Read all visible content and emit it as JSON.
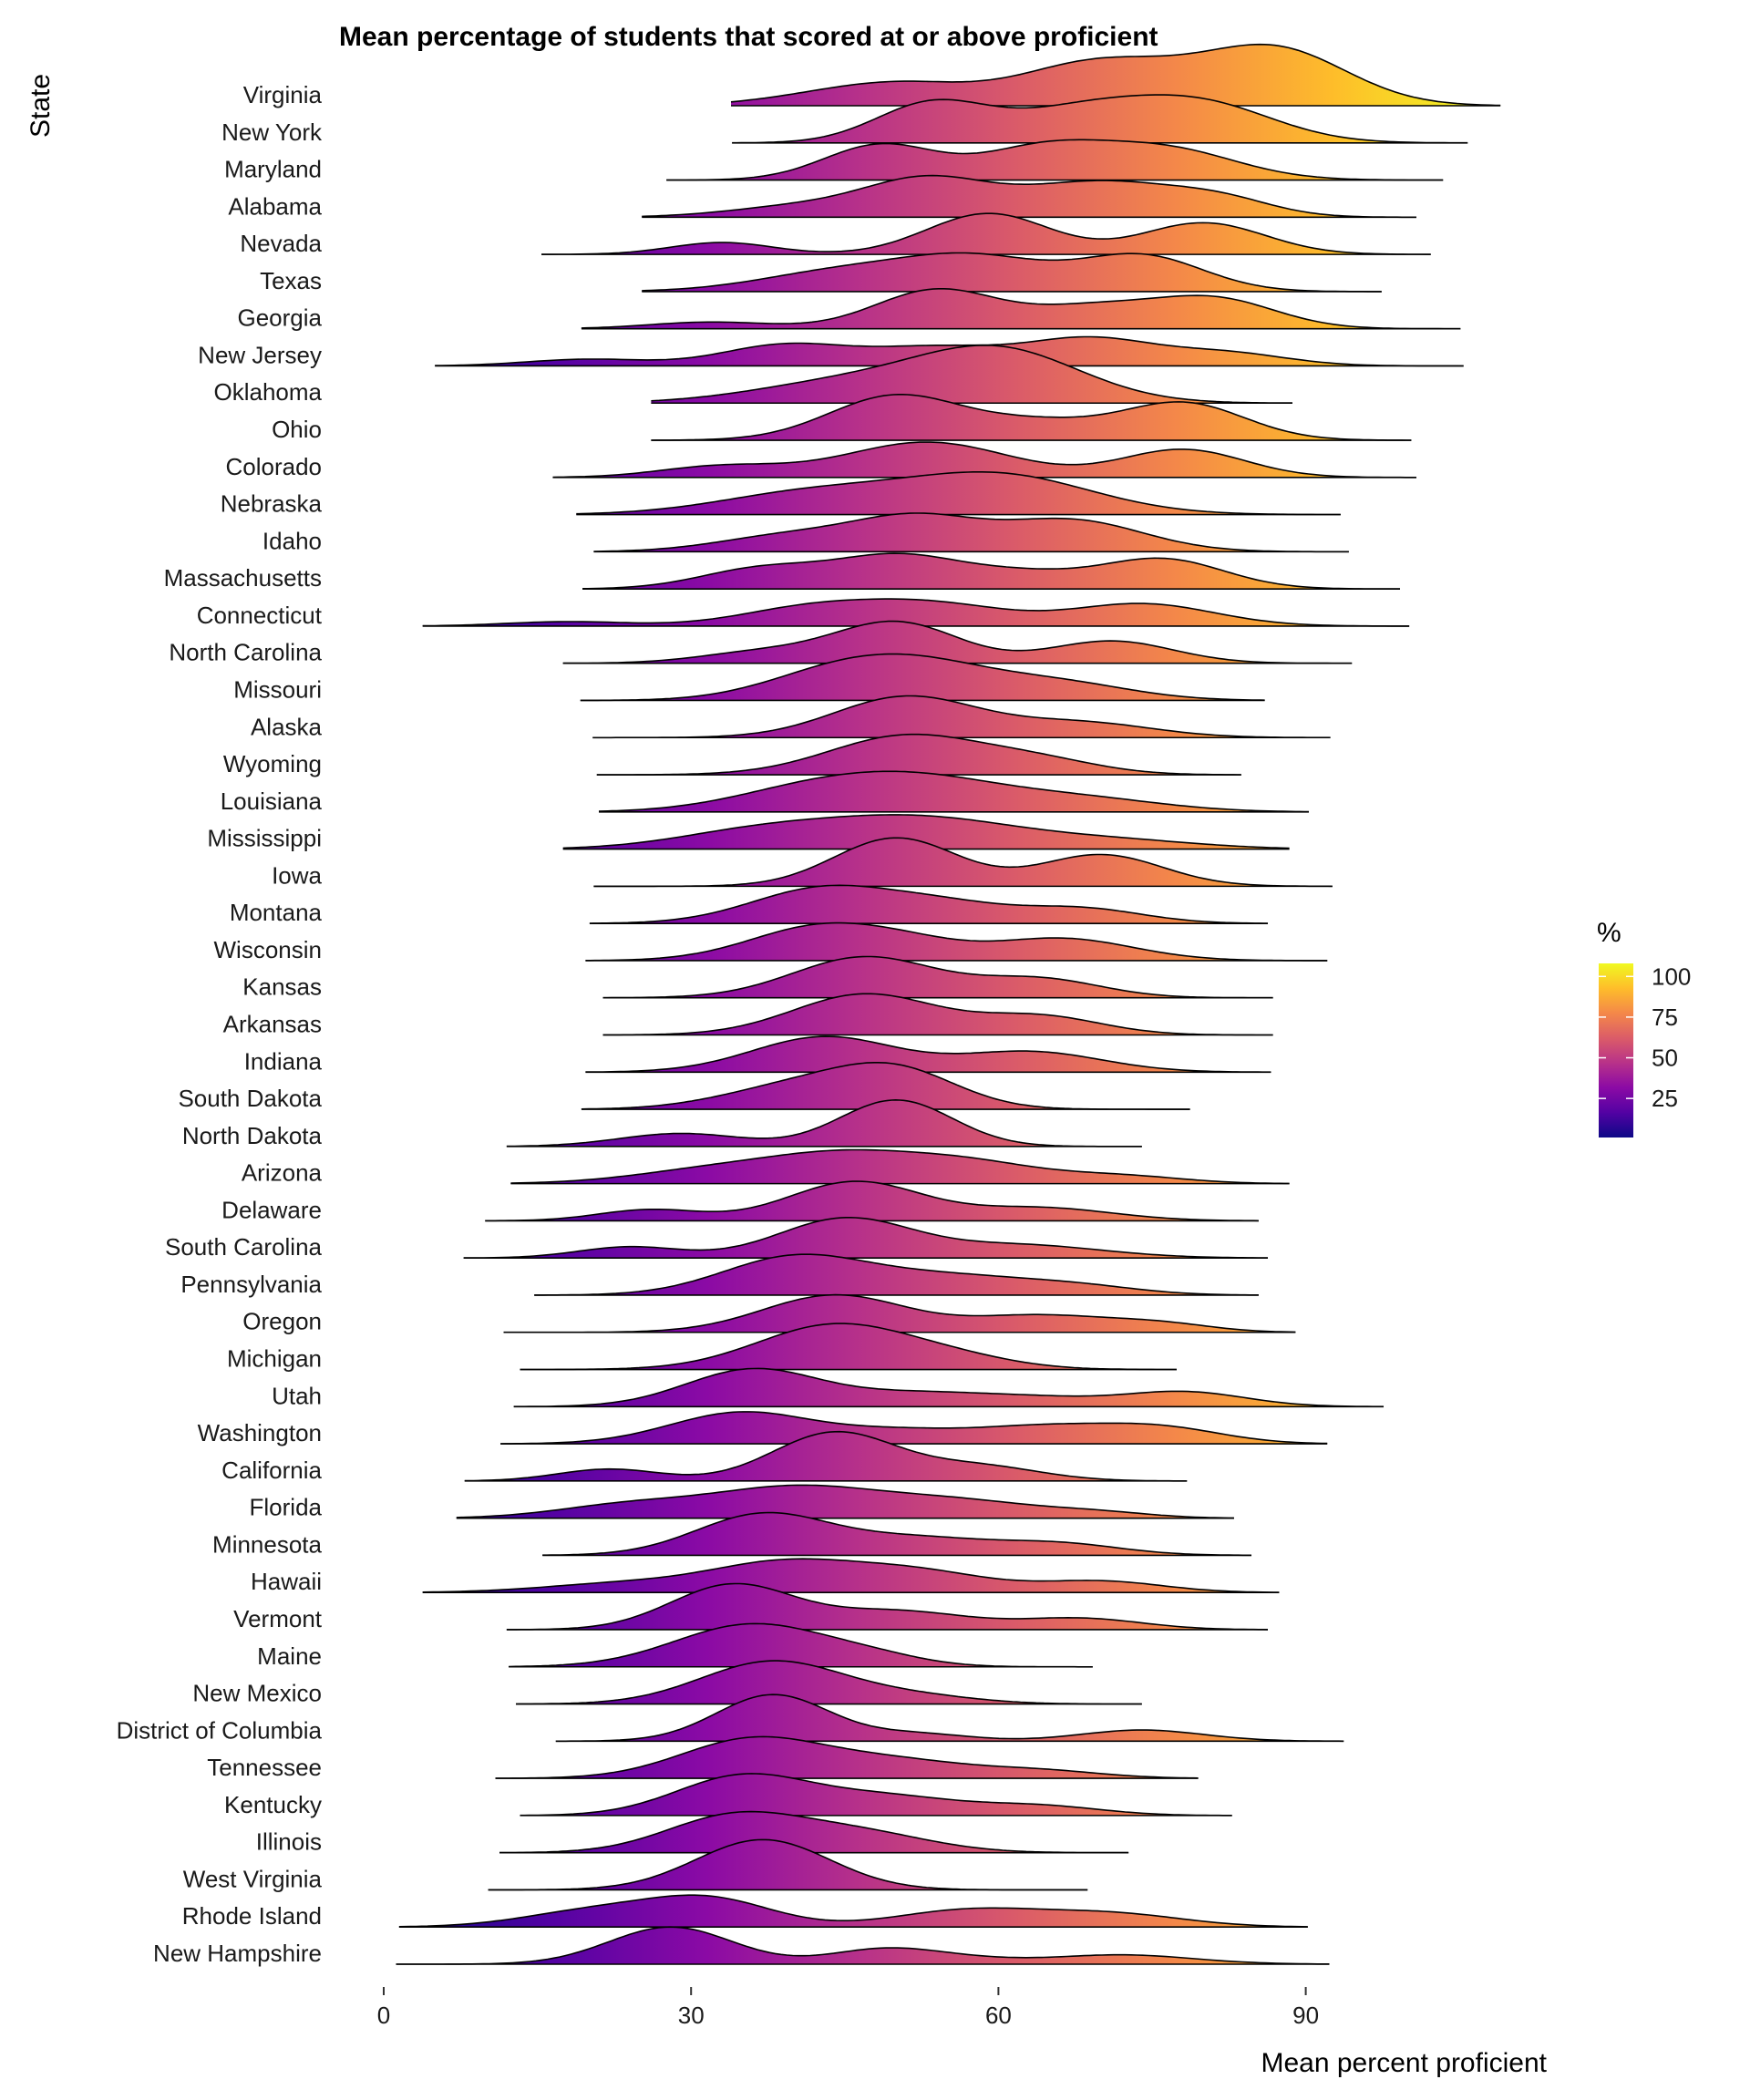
{
  "chart_data": {
    "type": "ridgeline",
    "title": "Mean percentage of students that scored at or above proficient",
    "xlabel": "Mean percent proficient",
    "ylabel": "State",
    "xlim": [
      0,
      110
    ],
    "x_ticks": [
      0,
      30,
      60,
      90
    ],
    "x_tick_labels": [
      "0",
      "30",
      "60",
      "90"
    ],
    "grid": false,
    "fill": "gradient by x value (plasma)",
    "legend": {
      "title": "%",
      "position": "right",
      "range": [
        1,
        108
      ],
      "ticks": [
        100,
        75,
        50,
        25
      ],
      "tick_labels": [
        "100",
        "75",
        "50",
        "25"
      ],
      "colors": [
        "#0d0887",
        "#5302a3",
        "#8b0aa5",
        "#b83289",
        "#db5c68",
        "#f48849",
        "#febd2a",
        "#f0f921"
      ]
    },
    "series": [
      {
        "state": "Virginia",
        "range": [
          33.9,
          109.0
        ],
        "peaks": [
          [
            45,
            7,
            0.35
          ],
          [
            52,
            6,
            0.35
          ],
          [
            70,
            8,
            1.2
          ],
          [
            87,
            7,
            1.5
          ]
        ]
      },
      {
        "state": "New York",
        "range": [
          34.0,
          105.8
        ],
        "peaks": [
          [
            53.5,
            5.5,
            1.05
          ],
          [
            68,
            7,
            0.85
          ],
          [
            80,
            7,
            1.0
          ]
        ]
      },
      {
        "state": "Maryland",
        "range": [
          27.6,
          103.4
        ],
        "peaks": [
          [
            48.5,
            5.5,
            0.95
          ],
          [
            64,
            6,
            0.8
          ],
          [
            76,
            7,
            0.85
          ]
        ]
      },
      {
        "state": "Alabama",
        "range": [
          25.2,
          100.8
        ],
        "peaks": [
          [
            41,
            7,
            0.3
          ],
          [
            53,
            6,
            0.95
          ],
          [
            70,
            8,
            0.95
          ],
          [
            82,
            5,
            0.35
          ]
        ]
      },
      {
        "state": "Nevada",
        "range": [
          15.4,
          102.2
        ],
        "peaks": [
          [
            33,
            5,
            0.32
          ],
          [
            59,
            6,
            1.1
          ],
          [
            80,
            6,
            0.85
          ]
        ]
      },
      {
        "state": "Texas",
        "range": [
          25.2,
          97.4
        ],
        "peaks": [
          [
            45,
            8,
            0.55
          ],
          [
            58,
            7,
            0.85
          ],
          [
            74,
            6,
            0.95
          ]
        ]
      },
      {
        "state": "Georgia",
        "range": [
          19.3,
          105.1
        ],
        "peaks": [
          [
            32,
            6,
            0.18
          ],
          [
            54,
            6,
            1.05
          ],
          [
            69,
            6,
            0.55
          ],
          [
            81,
            6,
            0.8
          ]
        ]
      },
      {
        "state": "New Jersey",
        "range": [
          5.0,
          105.4
        ],
        "peaks": [
          [
            20,
            6,
            0.18
          ],
          [
            39,
            6,
            0.55
          ],
          [
            54,
            7,
            0.5
          ],
          [
            69,
            6,
            0.7
          ],
          [
            82,
            6,
            0.35
          ]
        ]
      },
      {
        "state": "Oklahoma",
        "range": [
          26.1,
          88.7
        ],
        "peaks": [
          [
            45,
            9,
            0.55
          ],
          [
            60,
            8,
            1.4
          ]
        ]
      },
      {
        "state": "Ohio",
        "range": [
          26.1,
          100.3
        ],
        "peaks": [
          [
            50,
            6.5,
            1.2
          ],
          [
            64,
            6,
            0.45
          ],
          [
            78,
            6,
            1.0
          ]
        ]
      },
      {
        "state": "Colorado",
        "range": [
          16.5,
          100.8
        ],
        "peaks": [
          [
            33,
            6,
            0.3
          ],
          [
            53,
            8,
            0.95
          ],
          [
            78,
            6,
            0.75
          ]
        ]
      },
      {
        "state": "Nebraska",
        "range": [
          18.8,
          93.4
        ],
        "peaks": [
          [
            42,
            9,
            0.6
          ],
          [
            60,
            9,
            1.05
          ]
        ]
      },
      {
        "state": "Idaho",
        "range": [
          20.5,
          94.2
        ],
        "peaks": [
          [
            40,
            7,
            0.45
          ],
          [
            52,
            6,
            0.85
          ],
          [
            67,
            7,
            0.85
          ]
        ]
      },
      {
        "state": "Massachusetts",
        "range": [
          19.4,
          99.2
        ],
        "peaks": [
          [
            37,
            6,
            0.55
          ],
          [
            50,
            6,
            0.85
          ],
          [
            62,
            6,
            0.4
          ],
          [
            76,
            6,
            0.8
          ]
        ]
      },
      {
        "state": "Connecticut",
        "range": [
          3.8,
          100.1
        ],
        "peaks": [
          [
            18,
            6,
            0.12
          ],
          [
            42,
            7,
            0.5
          ],
          [
            54,
            7,
            0.55
          ],
          [
            74,
            7,
            0.6
          ]
        ]
      },
      {
        "state": "North Carolina",
        "range": [
          17.5,
          94.5
        ],
        "peaks": [
          [
            37,
            6,
            0.3
          ],
          [
            50,
            6,
            1.1
          ],
          [
            71,
            6,
            0.6
          ]
        ]
      },
      {
        "state": "Missouri",
        "range": [
          19.2,
          86.0
        ],
        "peaks": [
          [
            44,
            7,
            0.7
          ],
          [
            53,
            7,
            0.8
          ],
          [
            66,
            7,
            0.45
          ]
        ]
      },
      {
        "state": "Alaska",
        "range": [
          20.4,
          92.4
        ],
        "peaks": [
          [
            51,
            7,
            1.1
          ],
          [
            68,
            7,
            0.4
          ]
        ]
      },
      {
        "state": "Wyoming",
        "range": [
          20.8,
          83.7
        ],
        "peaks": [
          [
            51,
            7.5,
            1.05
          ],
          [
            64,
            6,
            0.35
          ]
        ]
      },
      {
        "state": "Louisiana",
        "range": [
          21.0,
          90.3
        ],
        "peaks": [
          [
            42,
            8,
            0.6
          ],
          [
            53,
            8,
            0.75
          ],
          [
            68,
            8,
            0.35
          ]
        ]
      },
      {
        "state": "Mississippi",
        "range": [
          17.5,
          88.4
        ],
        "peaks": [
          [
            36,
            8,
            0.4
          ],
          [
            52,
            10,
            0.85
          ],
          [
            72,
            8,
            0.2
          ]
        ]
      },
      {
        "state": "Iowa",
        "range": [
          20.5,
          92.6
        ],
        "peaks": [
          [
            50,
            6,
            1.3
          ],
          [
            70,
            6,
            0.85
          ]
        ]
      },
      {
        "state": "Montana",
        "range": [
          20.1,
          86.3
        ],
        "peaks": [
          [
            43,
            7,
            0.95
          ],
          [
            55,
            6,
            0.45
          ],
          [
            68,
            6,
            0.4
          ]
        ]
      },
      {
        "state": "Wisconsin",
        "range": [
          19.7,
          92.1
        ],
        "peaks": [
          [
            43,
            7,
            0.95
          ],
          [
            52,
            5,
            0.25
          ],
          [
            66,
            7,
            0.6
          ]
        ]
      },
      {
        "state": "Kansas",
        "range": [
          21.4,
          86.8
        ],
        "peaks": [
          [
            47,
            7,
            1.1
          ],
          [
            64,
            6,
            0.5
          ]
        ]
      },
      {
        "state": "Arkansas",
        "range": [
          21.4,
          86.8
        ],
        "peaks": [
          [
            47,
            7,
            1.1
          ],
          [
            64,
            6,
            0.5
          ]
        ]
      },
      {
        "state": "Indiana",
        "range": [
          19.7,
          86.6
        ],
        "peaks": [
          [
            43,
            7,
            0.95
          ],
          [
            63,
            7,
            0.55
          ]
        ]
      },
      {
        "state": "South Dakota",
        "range": [
          19.3,
          78.7
        ],
        "peaks": [
          [
            40,
            7,
            0.6
          ],
          [
            50,
            6,
            1.0
          ]
        ]
      },
      {
        "state": "North Dakota",
        "range": [
          12.0,
          74.0
        ],
        "peaks": [
          [
            29,
            6,
            0.35
          ],
          [
            50,
            5.5,
            1.25
          ]
        ]
      },
      {
        "state": "Arizona",
        "range": [
          12.4,
          88.4
        ],
        "peaks": [
          [
            33,
            8,
            0.4
          ],
          [
            45,
            7,
            0.65
          ],
          [
            57,
            7,
            0.55
          ],
          [
            72,
            6,
            0.2
          ]
        ]
      },
      {
        "state": "Delaware",
        "range": [
          9.9,
          85.4
        ],
        "peaks": [
          [
            26,
            5,
            0.3
          ],
          [
            46,
            6.5,
            1.05
          ],
          [
            64,
            7,
            0.35
          ]
        ]
      },
      {
        "state": "South Carolina",
        "range": [
          7.8,
          86.3
        ],
        "peaks": [
          [
            24,
            5,
            0.3
          ],
          [
            45,
            6.5,
            1.05
          ],
          [
            62,
            8,
            0.35
          ]
        ]
      },
      {
        "state": "Pennsylvania",
        "range": [
          14.7,
          85.4
        ],
        "peaks": [
          [
            40,
            7,
            1.0
          ],
          [
            55,
            8,
            0.5
          ],
          [
            68,
            6,
            0.2
          ]
        ]
      },
      {
        "state": "Oregon",
        "range": [
          11.7,
          89.0
        ],
        "peaks": [
          [
            44,
            7,
            1.0
          ],
          [
            64,
            7,
            0.45
          ],
          [
            76,
            5,
            0.2
          ]
        ]
      },
      {
        "state": "Michigan",
        "range": [
          13.3,
          77.4
        ],
        "peaks": [
          [
            44,
            7.5,
            1.2
          ],
          [
            56,
            6,
            0.25
          ]
        ]
      },
      {
        "state": "Utah",
        "range": [
          12.7,
          97.6
        ],
        "peaks": [
          [
            36,
            6.5,
            1.0
          ],
          [
            52,
            7,
            0.35
          ],
          [
            64,
            6,
            0.2
          ],
          [
            78,
            6,
            0.4
          ]
        ]
      },
      {
        "state": "Washington",
        "range": [
          11.4,
          92.1
        ],
        "peaks": [
          [
            35,
            7,
            0.85
          ],
          [
            50,
            6,
            0.3
          ],
          [
            64,
            7,
            0.45
          ],
          [
            76,
            6,
            0.4
          ]
        ]
      },
      {
        "state": "California",
        "range": [
          7.9,
          78.4
        ],
        "peaks": [
          [
            22,
            5,
            0.32
          ],
          [
            44,
            6,
            1.3
          ],
          [
            58,
            6,
            0.4
          ]
        ]
      },
      {
        "state": "Florida",
        "range": [
          7.1,
          83.0
        ],
        "peaks": [
          [
            24,
            7,
            0.35
          ],
          [
            40,
            8,
            0.8
          ],
          [
            56,
            8,
            0.45
          ],
          [
            70,
            5,
            0.12
          ]
        ]
      },
      {
        "state": "Minnesota",
        "range": [
          15.5,
          84.7
        ],
        "peaks": [
          [
            37,
            6.5,
            1.1
          ],
          [
            52,
            7,
            0.45
          ],
          [
            66,
            6,
            0.3
          ]
        ]
      },
      {
        "state": "Hawaii",
        "range": [
          3.8,
          87.4
        ],
        "peaks": [
          [
            24,
            8,
            0.25
          ],
          [
            39,
            7,
            0.75
          ],
          [
            52,
            7,
            0.55
          ],
          [
            70,
            6,
            0.3
          ]
        ]
      },
      {
        "state": "Vermont",
        "range": [
          12.0,
          86.3
        ],
        "peaks": [
          [
            34,
            6,
            1.2
          ],
          [
            50,
            7,
            0.5
          ],
          [
            68,
            6,
            0.3
          ]
        ]
      },
      {
        "state": "Maine",
        "range": [
          12.2,
          69.2
        ],
        "peaks": [
          [
            36,
            7.5,
            1.15
          ],
          [
            48,
            5,
            0.2
          ]
        ]
      },
      {
        "state": "New Mexico",
        "range": [
          12.9,
          74.0
        ],
        "peaks": [
          [
            38,
            7,
            1.15
          ],
          [
            52,
            6,
            0.2
          ]
        ]
      },
      {
        "state": "District of Columbia",
        "range": [
          16.8,
          93.7
        ],
        "peaks": [
          [
            38,
            5.5,
            1.25
          ],
          [
            52,
            5,
            0.2
          ],
          [
            74,
            6,
            0.3
          ]
        ]
      },
      {
        "state": "Tennessee",
        "range": [
          10.9,
          79.5
        ],
        "peaks": [
          [
            36,
            7,
            1.05
          ],
          [
            50,
            7,
            0.45
          ],
          [
            64,
            6,
            0.2
          ]
        ]
      },
      {
        "state": "Kentucky",
        "range": [
          13.3,
          82.8
        ],
        "peaks": [
          [
            35,
            6.5,
            1.05
          ],
          [
            49,
            7,
            0.5
          ],
          [
            64,
            6,
            0.25
          ]
        ]
      },
      {
        "state": "Illinois",
        "range": [
          11.3,
          72.7
        ],
        "peaks": [
          [
            34,
            6.5,
            0.95
          ],
          [
            46,
            7,
            0.55
          ]
        ]
      },
      {
        "state": "West Virginia",
        "range": [
          10.2,
          68.7
        ],
        "peaks": [
          [
            37,
            6.5,
            1.35
          ]
        ]
      },
      {
        "state": "Rhode Island",
        "range": [
          1.5,
          90.2
        ],
        "peaks": [
          [
            21,
            7,
            0.45
          ],
          [
            32,
            6,
            0.7
          ],
          [
            57,
            7,
            0.45
          ],
          [
            71,
            7,
            0.35
          ]
        ]
      },
      {
        "state": "New Hampshire",
        "range": [
          1.2,
          92.3
        ],
        "peaks": [
          [
            28,
            6,
            1.0
          ],
          [
            48,
            5,
            0.3
          ],
          [
            54,
            6,
            0.2
          ],
          [
            72,
            7,
            0.25
          ]
        ]
      }
    ]
  }
}
